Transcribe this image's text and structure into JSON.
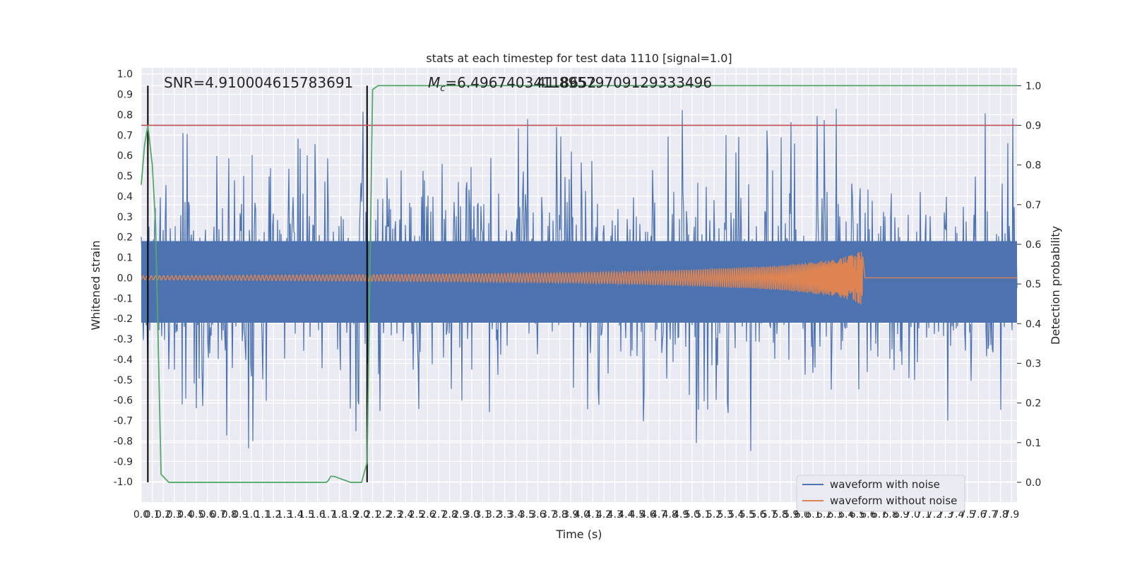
{
  "chart_data": {
    "type": "line",
    "title": "stats at each timestep for test data 1110 [signal=1.0]",
    "xlabel": "Time (s)",
    "ylabel": "Whitened strain",
    "y2label": "Detection probability",
    "xlim": [
      0.0,
      7.95
    ],
    "ylim": [
      -1.1,
      1.03
    ],
    "y2lim": [
      -0.05,
      1.045
    ],
    "x_ticks": [
      "0.0",
      "0.1",
      "0.2",
      "0.3",
      "0.4",
      "0.5",
      "0.6",
      "0.7",
      "0.8",
      "0.9",
      "1.0",
      "1.1",
      "1.2",
      "1.3",
      "1.4",
      "1.5",
      "1.6",
      "1.7",
      "1.8",
      "1.9",
      "2.0",
      "2.1",
      "2.2",
      "2.3",
      "2.4",
      "2.5",
      "2.6",
      "2.7",
      "2.8",
      "2.9",
      "3.0",
      "3.1",
      "3.2",
      "3.3",
      "3.4",
      "3.5",
      "3.6",
      "3.7",
      "3.8",
      "3.9",
      "4.0",
      "4.1",
      "4.2",
      "4.3",
      "4.4",
      "4.5",
      "4.6",
      "4.7",
      "4.8",
      "4.9",
      "5.0",
      "5.1",
      "5.2",
      "5.3",
      "5.4",
      "5.5",
      "5.6",
      "5.7",
      "5.8",
      "5.9",
      "6.0",
      "6.1",
      "6.2",
      "6.3",
      "6.4",
      "6.5",
      "6.6",
      "6.7",
      "6.8",
      "6.9",
      "7.0",
      "7.1",
      "7.2",
      "7.3",
      "7.4",
      "7.5",
      "7.6",
      "7.7",
      "7.8",
      "7.9"
    ],
    "y_ticks": [
      "1.0",
      "0.9",
      "0.8",
      "0.7",
      "0.6",
      "0.5",
      "0.4",
      "0.3",
      "0.2",
      "0.1",
      "0.0",
      "-0.1",
      "-0.2",
      "-0.3",
      "-0.4",
      "-0.5",
      "-0.6",
      "-0.7",
      "-0.8",
      "-0.9",
      "-1.0"
    ],
    "y2_ticks": [
      "1.0",
      "0.9",
      "0.8",
      "0.7",
      "0.6",
      "0.5",
      "0.4",
      "0.3",
      "0.2",
      "0.1",
      "0.0"
    ],
    "annotations": {
      "snr": "SNR=4.910004615783691",
      "mc_symbol": "M",
      "mc_sub": "c",
      "mc_value": "=6.49674034118652",
      "overlap_value": "41.89579709129333496"
    },
    "threshold": 0.9,
    "vertical_markers_x": [
      0.06,
      2.05
    ],
    "noise_envelope": {
      "amplitude": 0.42,
      "merger_time": 6.55
    },
    "clean_envelope": [
      [
        0.0,
        0.01
      ],
      [
        1.0,
        0.013
      ],
      [
        2.0,
        0.016
      ],
      [
        3.0,
        0.02
      ],
      [
        4.0,
        0.026
      ],
      [
        5.0,
        0.04
      ],
      [
        5.8,
        0.06
      ],
      [
        6.3,
        0.09
      ],
      [
        6.5,
        0.12
      ],
      [
        6.55,
        0.14
      ],
      [
        6.57,
        0.0
      ],
      [
        7.95,
        0.0
      ]
    ],
    "series": [
      {
        "name": "waveform with noise",
        "color": "#4c72b0"
      },
      {
        "name": "waveform without noise",
        "color": "#dd8452"
      },
      {
        "name": "detection probability",
        "color": "#55a868",
        "x": [
          0.0,
          0.03,
          0.06,
          0.1,
          0.13,
          0.18,
          0.25,
          0.4,
          0.8,
          1.2,
          1.6,
          1.62,
          1.68,
          1.7,
          1.72,
          1.75,
          1.8,
          1.85,
          1.9,
          1.95,
          2.0,
          2.03,
          2.05,
          2.08,
          2.1,
          2.15,
          2.5,
          7.95
        ],
        "y": [
          0.75,
          0.85,
          0.9,
          0.8,
          0.65,
          0.02,
          0.0,
          0.0,
          0.0,
          0.0,
          0.0,
          0.0,
          0.0,
          0.005,
          0.015,
          0.015,
          0.01,
          0.005,
          0.0,
          0.0,
          0.0,
          0.03,
          0.05,
          0.6,
          0.99,
          1.0,
          1.0,
          1.0
        ]
      },
      {
        "name": "threshold",
        "color": "#c44e52"
      }
    ],
    "legend": {
      "position": "lower-right",
      "entries": [
        "waveform with noise",
        "waveform without noise"
      ]
    },
    "grid": true
  }
}
